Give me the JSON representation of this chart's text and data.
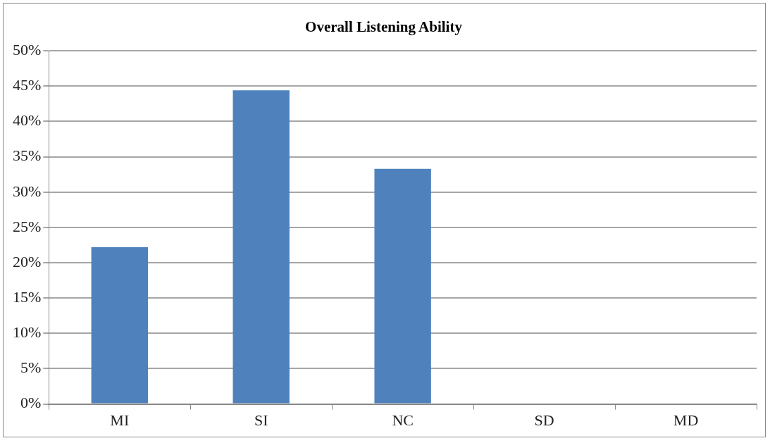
{
  "chart_data": {
    "type": "bar",
    "title": "Overall Listening Ability",
    "categories": [
      "MI",
      "SI",
      "NC",
      "SD",
      "MD"
    ],
    "values": [
      22.2,
      44.4,
      33.3,
      0,
      0
    ],
    "color": "#4f81bd",
    "ylim": [
      0,
      50
    ],
    "yticks": [
      {
        "value": 0,
        "label": "0%"
      },
      {
        "value": 5,
        "label": "5%"
      },
      {
        "value": 10,
        "label": "10%"
      },
      {
        "value": 15,
        "label": "15%"
      },
      {
        "value": 20,
        "label": "20%"
      },
      {
        "value": 25,
        "label": "25%"
      },
      {
        "value": 30,
        "label": "30%"
      },
      {
        "value": 35,
        "label": "35%"
      },
      {
        "value": 40,
        "label": "40%"
      },
      {
        "value": 45,
        "label": "45%"
      },
      {
        "value": 50,
        "label": "50%"
      }
    ],
    "grid": "y"
  }
}
